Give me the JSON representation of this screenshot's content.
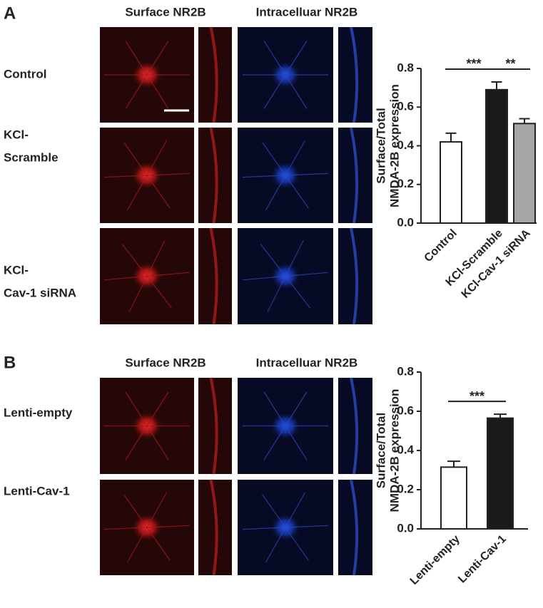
{
  "panels": [
    {
      "label": "A",
      "columns": [
        "Surface NR2B",
        "Intracelluar NR2B"
      ],
      "rows": [
        [
          "Control"
        ],
        [
          "KCl-",
          "Scramble"
        ],
        [
          "KCl-",
          "Cav-1 siRNA"
        ]
      ]
    },
    {
      "label": "B",
      "columns": [
        "Surface NR2B",
        "Intracelluar NR2B"
      ],
      "rows": [
        [
          "Lenti-empty"
        ],
        [
          "Lenti-Cav-1"
        ]
      ]
    }
  ],
  "chart_data": [
    {
      "type": "bar",
      "ylabel": [
        "Surface/Total",
        "NMDA-2B expression"
      ],
      "categories": [
        "Control",
        "KCl-Scramble",
        "KCl-Cav-1 siRNA"
      ],
      "values": [
        0.42,
        0.69,
        0.515
      ],
      "errors": [
        0.045,
        0.04,
        0.025
      ],
      "colors": [
        "#ffffff",
        "#1a1a1a",
        "#a6a6a6"
      ],
      "ylim": [
        0,
        0.8
      ],
      "yticks": [
        {
          "value": 0,
          "label": "0.0"
        },
        0.2,
        0.4,
        0.6,
        0.8
      ],
      "annotations": [
        {
          "text": "***",
          "between": [
            0,
            1
          ]
        },
        {
          "text": "**",
          "between": [
            1,
            2
          ]
        }
      ]
    },
    {
      "type": "bar",
      "ylabel": [
        "Surface/Total",
        "NMDA-2B expression"
      ],
      "categories": [
        "Lenti-empty",
        "Lenti-Cav-1"
      ],
      "values": [
        0.315,
        0.565
      ],
      "errors": [
        0.03,
        0.02
      ],
      "colors": [
        "#ffffff",
        "#1a1a1a"
      ],
      "ylim": [
        0,
        0.8
      ],
      "yticks": [
        {
          "value": 0,
          "label": "0.0"
        },
        0.2,
        0.4,
        0.6,
        0.8
      ],
      "annotations": [
        {
          "text": "***",
          "between": [
            0,
            1
          ]
        }
      ]
    }
  ]
}
